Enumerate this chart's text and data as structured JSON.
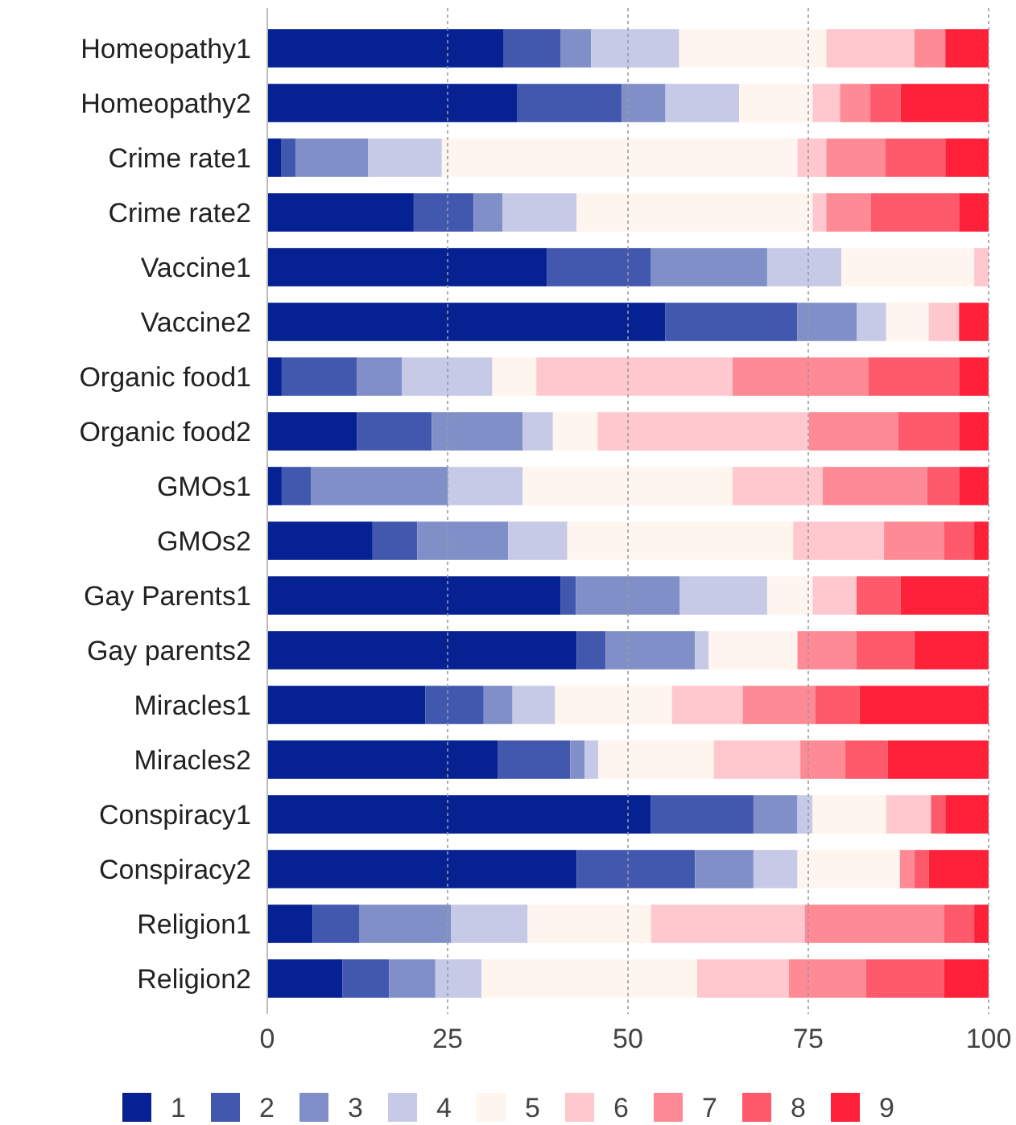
{
  "chart_data": {
    "type": "bar",
    "orientation": "horizontal",
    "stacked": true,
    "grid": "x",
    "legend": "bottom",
    "categories": [
      "Homeopathy1",
      "Homeopathy2",
      "Crime rate1",
      "Crime rate2",
      "Vaccine1",
      "Vaccine2",
      "Organic food1",
      "Organic food2",
      "GMOs1",
      "GMOs2",
      "Gay Parents1",
      "Gay parents2",
      "Miracles1",
      "Miracles2",
      "Conspiracy1",
      "Conspiracy2",
      "Religion1",
      "Religion2"
    ],
    "xlim": [
      0,
      100
    ],
    "xticks": [
      0,
      25,
      50,
      75,
      100
    ],
    "series": [
      {
        "name": "1",
        "color": "#052192",
        "values": [
          32.7,
          34.6,
          1.9,
          20.3,
          38.8,
          55.2,
          2.0,
          12.4,
          2.0,
          14.6,
          40.7,
          42.9,
          21.9,
          32.0,
          53.2,
          42.9,
          6.3,
          10.4
        ]
      },
      {
        "name": "2",
        "color": "#4257ae",
        "values": [
          8.0,
          14.5,
          2.0,
          8.3,
          14.4,
          18.3,
          10.4,
          10.4,
          4.1,
          6.2,
          2.1,
          4.0,
          8.1,
          10.0,
          14.2,
          16.4,
          6.5,
          6.5
        ]
      },
      {
        "name": "3",
        "color": "#808fc8",
        "values": [
          4.2,
          6.1,
          10.1,
          4.0,
          16.1,
          8.2,
          6.3,
          12.6,
          18.9,
          12.6,
          14.4,
          12.4,
          4.0,
          2.0,
          6.1,
          8.1,
          12.7,
          6.4
        ]
      },
      {
        "name": "4",
        "color": "#c6cae6",
        "values": [
          12.2,
          10.2,
          10.2,
          10.3,
          10.3,
          4.1,
          12.5,
          4.2,
          10.4,
          8.2,
          12.1,
          1.9,
          5.9,
          1.9,
          2.1,
          6.1,
          10.6,
          6.4
        ]
      },
      {
        "name": "5",
        "color": "#fef5ef",
        "values": [
          20.4,
          10.2,
          49.3,
          32.7,
          18.4,
          5.9,
          6.1,
          6.2,
          29.1,
          31.3,
          6.3,
          12.3,
          16.2,
          16.0,
          10.2,
          14.2,
          17.1,
          29.9
        ]
      },
      {
        "name": "6",
        "color": "#fec8ce",
        "values": [
          12.2,
          3.8,
          4.0,
          1.9,
          2.0,
          4.2,
          27.2,
          29.3,
          12.5,
          12.6,
          6.1,
          0,
          9.8,
          12.0,
          6.2,
          0,
          21.3,
          12.7
        ]
      },
      {
        "name": "7",
        "color": "#fe8a95",
        "values": [
          4.3,
          4.2,
          8.2,
          6.2,
          0,
          0,
          18.8,
          12.4,
          14.5,
          8.3,
          0,
          8.2,
          10.1,
          6.2,
          0,
          2.0,
          19.3,
          10.7
        ]
      },
      {
        "name": "8",
        "color": "#fe5a6b",
        "values": [
          0,
          4.2,
          8.3,
          12.2,
          0,
          0,
          12.6,
          8.4,
          4.4,
          4.2,
          6.1,
          8.0,
          6.1,
          5.9,
          2.0,
          2.0,
          4.2,
          10.8
        ]
      },
      {
        "name": "9",
        "color": "#fe2139",
        "values": [
          6.0,
          12.2,
          6.0,
          4.1,
          0,
          4.1,
          4.1,
          4.1,
          4.1,
          2.0,
          12.2,
          10.3,
          17.9,
          14.0,
          6.0,
          8.3,
          2.0,
          6.2
        ]
      }
    ]
  }
}
